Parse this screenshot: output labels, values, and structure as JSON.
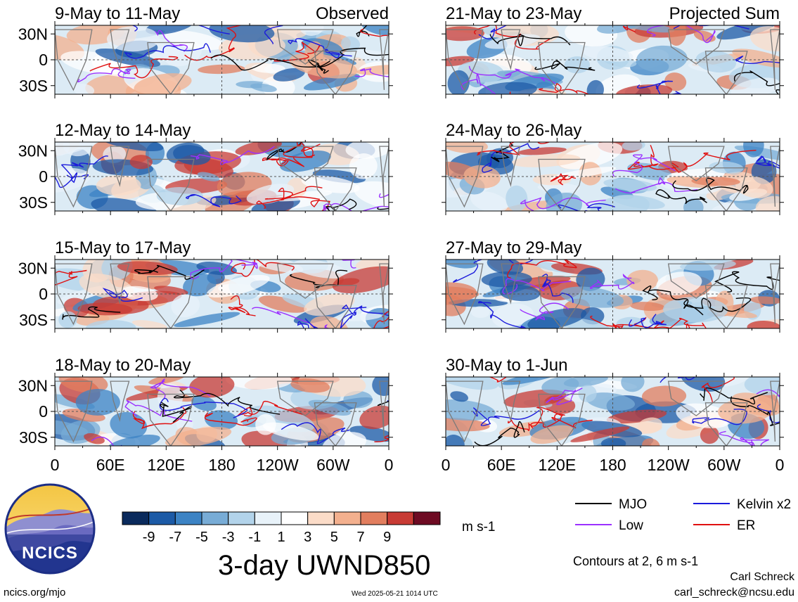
{
  "chart_data": {
    "type": "heatmap",
    "variable": "3-day UWND850",
    "units": "m s-1",
    "contour_note": "Contours at 2, 6 m s-1",
    "columns": [
      {
        "header": "Observed",
        "panels": [
          {
            "title": "9-May to 11-May"
          },
          {
            "title": "12-May to 14-May"
          },
          {
            "title": "15-May to 17-May"
          },
          {
            "title": "18-May to 20-May"
          }
        ]
      },
      {
        "header": "Projected Sum",
        "panels": [
          {
            "title": "21-May to 23-May"
          },
          {
            "title": "24-May to 26-May"
          },
          {
            "title": "27-May to 29-May"
          },
          {
            "title": "30-May to 1-Jun"
          }
        ]
      }
    ],
    "x_ticks": [
      "0",
      "60E",
      "120E",
      "180",
      "120W",
      "60W",
      "0"
    ],
    "y_ticks": [
      "30N",
      "0",
      "30S"
    ],
    "x_range": [
      0,
      360
    ],
    "y_range": [
      -40,
      40
    ],
    "colorbar": {
      "labels": [
        "-9",
        "-7",
        "-5",
        "-3",
        "-1",
        "1",
        "3",
        "5",
        "7",
        "9"
      ],
      "colors": [
        "#0a2a5c",
        "#1c5aa6",
        "#3c83c4",
        "#78acd6",
        "#b2d3ea",
        "#e8f2f9",
        "#ffffff",
        "#fbdcc8",
        "#f3b08e",
        "#e27e5e",
        "#c83b34",
        "#6e0b23"
      ]
    },
    "contour_legend": [
      {
        "label": "MJO",
        "color": "#000000"
      },
      {
        "label": "Kelvin x2",
        "color": "#1b1bdc"
      },
      {
        "label": "Low",
        "color": "#9b30ff"
      },
      {
        "label": "ER",
        "color": "#e01010"
      }
    ]
  },
  "branding": {
    "logo_text": "NCICS",
    "url": "ncics.org/mjo",
    "timestamp": "Wed 2025-05-21 1014 UTC",
    "author": "Carl Schreck",
    "email": "carl_schreck@ncsu.edu"
  }
}
